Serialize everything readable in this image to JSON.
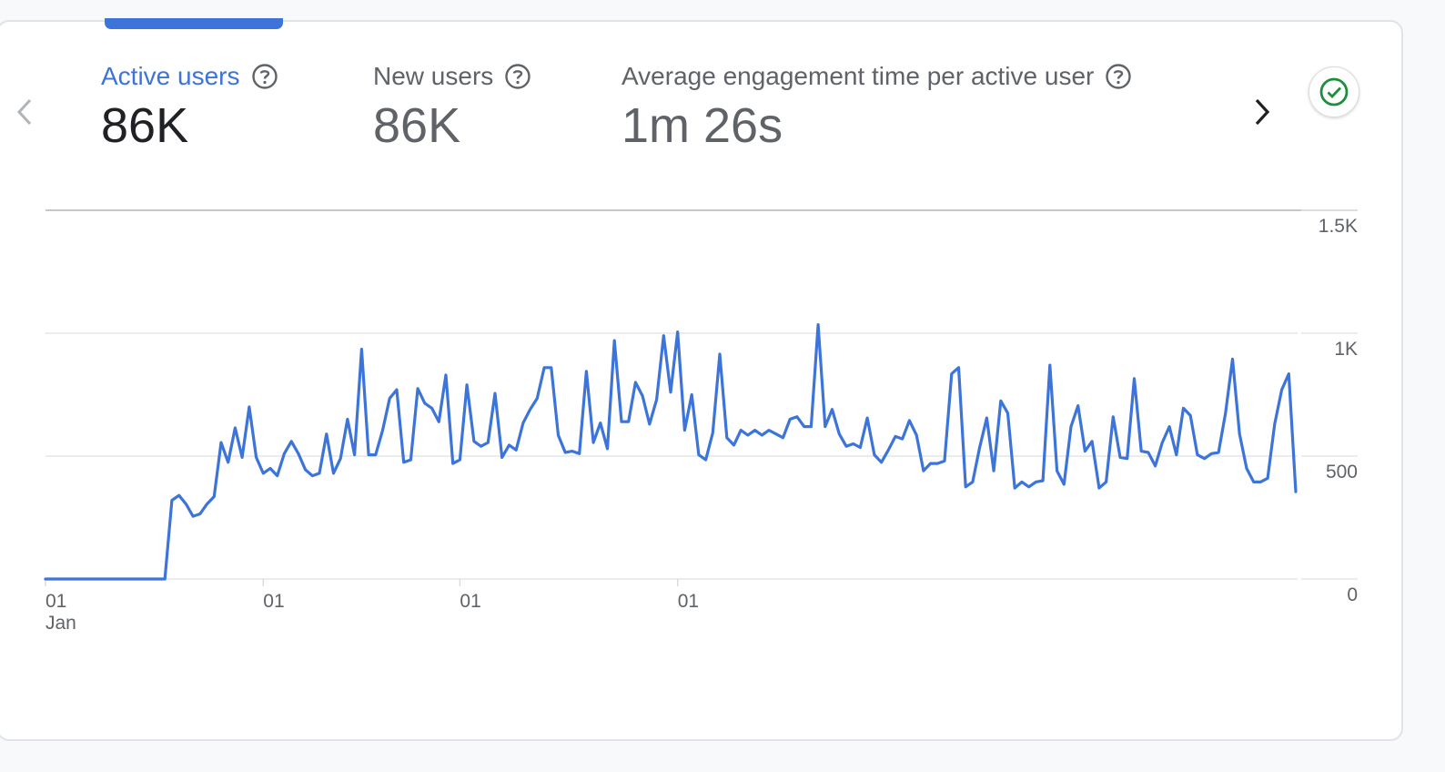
{
  "metrics": [
    {
      "label": "Active users",
      "value": "86K"
    },
    {
      "label": "New users",
      "value": "86K"
    },
    {
      "label": "Average engagement time per active user",
      "value": "1m 26s"
    }
  ],
  "colors": {
    "accent": "#3c74d9",
    "line": "#3c74d9",
    "grid": "#dadce0",
    "axis_text": "#5f6368",
    "status_green": "#1e8e3e"
  },
  "icons": {
    "prev": "chevron-left-icon",
    "next": "chevron-right-icon",
    "help": "help-circle-icon",
    "status": "check-circle-icon"
  },
  "chart_data": {
    "type": "line",
    "title": "",
    "xlabel": "",
    "ylabel": "",
    "ylim": [
      0,
      1500
    ],
    "y_ticks": [
      "0",
      "500",
      "1K",
      "1.5K"
    ],
    "x_ticks": [
      {
        "label": "01",
        "sublabel": "Jan",
        "index": 0
      },
      {
        "label": "01",
        "sublabel": "",
        "index": 31
      },
      {
        "label": "01",
        "sublabel": "",
        "index": 59
      },
      {
        "label": "01",
        "sublabel": "",
        "index": 90
      }
    ],
    "grid": true,
    "series": [
      {
        "values": [
          0,
          0,
          0,
          0,
          0,
          0,
          0,
          0,
          0,
          0,
          0,
          0,
          0,
          0,
          0,
          0,
          0,
          0,
          320,
          340,
          305,
          255,
          265,
          305,
          335,
          555,
          475,
          615,
          495,
          700,
          495,
          430,
          450,
          420,
          510,
          560,
          510,
          445,
          420,
          430,
          590,
          430,
          490,
          650,
          505,
          935,
          505,
          505,
          605,
          735,
          770,
          475,
          485,
          775,
          715,
          695,
          640,
          830,
          470,
          485,
          790,
          560,
          540,
          555,
          755,
          495,
          545,
          525,
          635,
          690,
          735,
          860,
          860,
          585,
          515,
          520,
          510,
          845,
          555,
          635,
          530,
          970,
          640,
          640,
          800,
          745,
          630,
          730,
          990,
          760,
          1005,
          605,
          750,
          505,
          485,
          595,
          915,
          575,
          545,
          605,
          585,
          605,
          585,
          605,
          590,
          575,
          650,
          660,
          620,
          620,
          1035,
          620,
          690,
          590,
          540,
          550,
          535,
          655,
          505,
          475,
          525,
          580,
          570,
          645,
          585,
          440,
          470,
          470,
          480,
          835,
          860,
          375,
          395,
          535,
          655,
          440,
          725,
          675,
          370,
          395,
          375,
          395,
          400,
          870,
          440,
          385,
          620,
          705,
          520,
          560,
          370,
          395,
          660,
          495,
          490,
          815,
          520,
          515,
          460,
          555,
          620,
          505,
          695,
          665,
          505,
          490,
          510,
          515,
          675,
          895,
          590,
          450,
          395,
          395,
          410,
          630,
          770,
          835,
          355
        ]
      }
    ]
  }
}
